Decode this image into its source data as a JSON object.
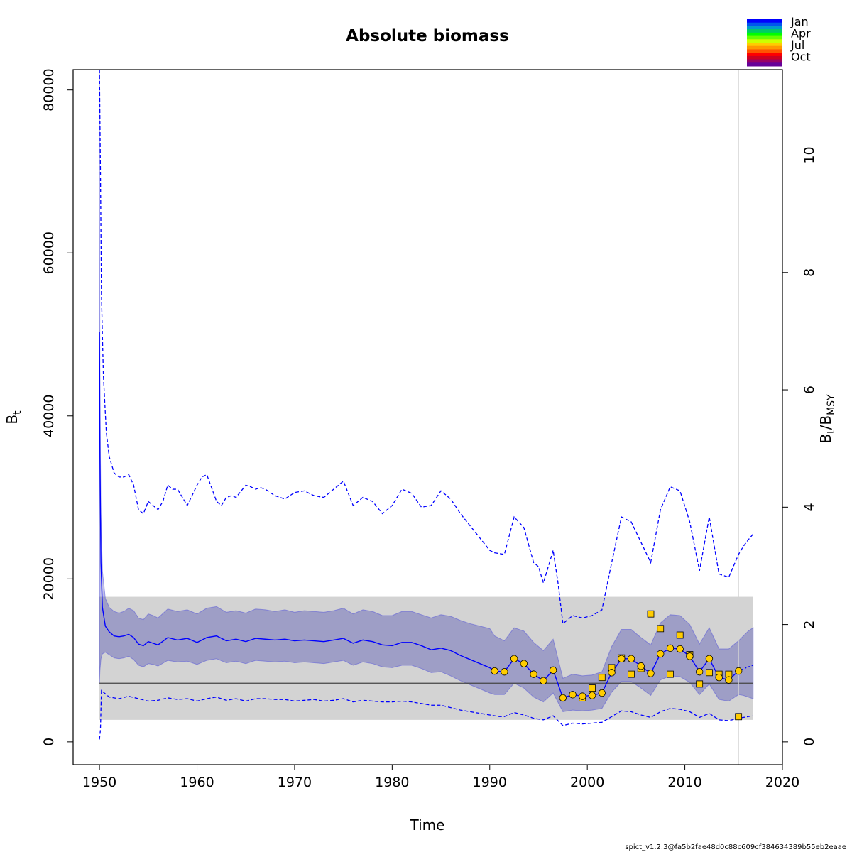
{
  "chart_data": {
    "type": "line",
    "title": "Absolute biomass",
    "xlabel": "Time",
    "ylabel_main": "B",
    "ylabel_sub": "t",
    "y2label": {
      "b": "B",
      "t": "t",
      "slash": "/",
      "b2": "B",
      "msy": "MSY"
    },
    "xlim": [
      1947.3,
      2020
    ],
    "ylim": [
      -2800,
      82500
    ],
    "x_ticks": [
      1950,
      1960,
      1970,
      1980,
      1990,
      2000,
      2010,
      2020
    ],
    "y_ticks": [
      0,
      20000,
      40000,
      60000,
      80000
    ],
    "y2_ticks": [
      0,
      2,
      4,
      6,
      8,
      10
    ],
    "y2_per_unit": 7200,
    "bmsy": 7200,
    "bmsy_ci": [
      2700,
      17800
    ],
    "bmsy_ci_x": [
      1950,
      2017
    ],
    "vline_x": 2015.5,
    "estimate": {
      "x": [
        1950,
        1950.05,
        1950.15,
        1950.3,
        1950.6,
        1951,
        1951.5,
        1952,
        1952.5,
        1953,
        1953.5,
        1954,
        1954.5,
        1955,
        1955.5,
        1956,
        1957,
        1958,
        1959,
        1960,
        1961,
        1962,
        1963,
        1964,
        1965,
        1966,
        1967,
        1968,
        1969,
        1970,
        1971,
        1972,
        1973,
        1974,
        1975,
        1976,
        1977,
        1978,
        1979,
        1980,
        1981,
        1982,
        1983,
        1984,
        1985,
        1986,
        1987,
        1988,
        1989,
        1990,
        1990.5,
        1991.5,
        1992.5,
        1993.5,
        1994.5,
        1995.5,
        1996.5,
        1997.5,
        1998.5,
        1999.5,
        2000.5,
        2001.5,
        2002.5,
        2003.5,
        2004.5,
        2005.5,
        2006.5,
        2007.5,
        2008.5,
        2009.5,
        2010.5,
        2011.5,
        2012.5,
        2013.5,
        2014.5,
        2015.5
      ],
      "y": [
        50300,
        35000,
        22000,
        16500,
        14200,
        13500,
        13000,
        12900,
        13000,
        13200,
        12800,
        12000,
        11800,
        12300,
        12100,
        11900,
        12800,
        12500,
        12700,
        12200,
        12800,
        13000,
        12400,
        12600,
        12300,
        12700,
        12600,
        12500,
        12600,
        12400,
        12500,
        12400,
        12300,
        12500,
        12700,
        12100,
        12500,
        12300,
        11900,
        11800,
        12200,
        12200,
        11800,
        11300,
        11500,
        11200,
        10600,
        10100,
        9600,
        9100,
        8700,
        8600,
        10200,
        9600,
        8300,
        7500,
        8800,
        5400,
        5800,
        5600,
        5700,
        6000,
        8500,
        10200,
        10200,
        9300,
        8400,
        10800,
        11500,
        11400,
        10500,
        8600,
        10200,
        7900,
        7600,
        8700
      ]
    },
    "estimate_forecast": {
      "x": [
        2015.5,
        2016,
        2016.5,
        2017
      ],
      "y": [
        8700,
        8950,
        9200,
        9400
      ]
    },
    "ci_upper": {
      "x": [
        1950,
        1950.05,
        1950.15,
        1950.3,
        1950.6,
        1951,
        1951.5,
        1952,
        1952.5,
        1953,
        1953.5,
        1954,
        1954.5,
        1955,
        1955.5,
        1956,
        1957,
        1958,
        1959,
        1960,
        1961,
        1962,
        1963,
        1964,
        1965,
        1966,
        1967,
        1968,
        1969,
        1970,
        1971,
        1972,
        1973,
        1974,
        1975,
        1976,
        1977,
        1978,
        1979,
        1980,
        1981,
        1982,
        1983,
        1984,
        1985,
        1986,
        1987,
        1988,
        1989,
        1990,
        1990.5,
        1991.5,
        1992.5,
        1993.5,
        1994.5,
        1995.5,
        1996.5,
        1997.5,
        1998.5,
        1999.5,
        2000.5,
        2001.5,
        2002.5,
        2003.5,
        2004.5,
        2005.5,
        2006.5,
        2007.5,
        2008.5,
        2009.5,
        2010.5,
        2011.5,
        2012.5,
        2013.5,
        2014.5,
        2015.5,
        2016,
        2016.5,
        2017
      ],
      "y": [
        82500,
        42000,
        28000,
        21000,
        17600,
        16500,
        16000,
        15800,
        16000,
        16400,
        16100,
        15200,
        15000,
        15700,
        15500,
        15200,
        16300,
        16000,
        16200,
        15700,
        16400,
        16600,
        15900,
        16100,
        15800,
        16300,
        16200,
        16000,
        16200,
        15900,
        16100,
        16000,
        15900,
        16100,
        16400,
        15700,
        16200,
        16000,
        15500,
        15500,
        16000,
        16000,
        15600,
        15200,
        15600,
        15400,
        14900,
        14500,
        14200,
        13900,
        13000,
        12400,
        14000,
        13600,
        12200,
        11200,
        12600,
        7800,
        8300,
        8100,
        8200,
        8600,
        11700,
        13800,
        13800,
        12800,
        11900,
        14600,
        15600,
        15500,
        14400,
        12000,
        14000,
        11400,
        11400,
        12400,
        13000,
        13600,
        14000
      ]
    },
    "ci_lower": {
      "x": [
        1950,
        1950.05,
        1950.15,
        1950.3,
        1950.6,
        1951,
        1951.5,
        1952,
        1952.5,
        1953,
        1953.5,
        1954,
        1954.5,
        1955,
        1955.5,
        1956,
        1957,
        1958,
        1959,
        1960,
        1961,
        1962,
        1963,
        1964,
        1965,
        1966,
        1967,
        1968,
        1969,
        1970,
        1971,
        1972,
        1973,
        1974,
        1975,
        1976,
        1977,
        1978,
        1979,
        1980,
        1981,
        1982,
        1983,
        1984,
        1985,
        1986,
        1987,
        1988,
        1989,
        1990,
        1990.5,
        1991.5,
        1992.5,
        1993.5,
        1994.5,
        1995.5,
        1996.5,
        1997.5,
        1998.5,
        1999.5,
        2000.5,
        2001.5,
        2002.5,
        2003.5,
        2004.5,
        2005.5,
        2006.5,
        2007.5,
        2008.5,
        2009.5,
        2010.5,
        2011.5,
        2012.5,
        2013.5,
        2014.5,
        2015.5,
        2016,
        2016.5,
        2017
      ],
      "y": [
        7200,
        8800,
        10200,
        10800,
        11000,
        10700,
        10300,
        10200,
        10300,
        10500,
        10100,
        9400,
        9200,
        9600,
        9500,
        9300,
        10000,
        9800,
        9900,
        9500,
        10000,
        10200,
        9700,
        9900,
        9600,
        10000,
        9900,
        9800,
        9900,
        9700,
        9800,
        9700,
        9600,
        9800,
        10000,
        9400,
        9800,
        9600,
        9200,
        9100,
        9400,
        9400,
        9000,
        8500,
        8600,
        8100,
        7500,
        7000,
        6500,
        6000,
        5800,
        5800,
        7200,
        6600,
        5500,
        4900,
        6000,
        3700,
        3900,
        3800,
        3900,
        4100,
        6100,
        7400,
        7400,
        6600,
        5700,
        7600,
        8100,
        8000,
        7300,
        5800,
        7100,
        5200,
        5000,
        5800,
        5700,
        5500,
        5300
      ]
    },
    "dashed_upper": {
      "x": [
        1950,
        1950.1,
        1950.2,
        1950.4,
        1950.7,
        1951,
        1951.5,
        1952,
        1952.5,
        1953,
        1953.5,
        1954,
        1954.5,
        1955,
        1955.5,
        1956,
        1956.5,
        1957,
        1957.5,
        1958,
        1959,
        1960,
        1960.5,
        1961,
        1962,
        1962.5,
        1963,
        1963.5,
        1964,
        1965,
        1965.5,
        1966,
        1966.5,
        1967,
        1968,
        1969,
        1970,
        1971,
        1972,
        1973,
        1974,
        1975,
        1976,
        1977,
        1978,
        1979,
        1980,
        1981,
        1982,
        1983,
        1984,
        1985,
        1986,
        1987,
        1988,
        1989,
        1990,
        1990.5,
        1991.5,
        1992.5,
        1993.5,
        1994.5,
        1995,
        1995.5,
        1996,
        1996.5,
        1997,
        1997.5,
        1998.5,
        1999.5,
        2000.5,
        2001.5,
        2002.5,
        2003.5,
        2004.5,
        2005.5,
        2006.5,
        2007.5,
        2008.5,
        2009.5,
        2010.5,
        2011.5,
        2012.5,
        2013.5,
        2014.5,
        2015.5,
        2016,
        2016.5,
        2017
      ],
      "y": [
        82500,
        70000,
        55000,
        45000,
        38000,
        35000,
        33000,
        32500,
        32500,
        32800,
        31500,
        28500,
        28000,
        29500,
        29000,
        28500,
        29500,
        31500,
        31000,
        31000,
        29000,
        31500,
        32500,
        32800,
        29500,
        29000,
        30000,
        30200,
        30000,
        31500,
        31300,
        31000,
        31200,
        31000,
        30200,
        29800,
        30600,
        30800,
        30200,
        30000,
        31000,
        32000,
        29000,
        30000,
        29500,
        28000,
        29000,
        31000,
        30500,
        28800,
        29000,
        30800,
        29800,
        28000,
        26500,
        25000,
        23500,
        23200,
        23000,
        27600,
        26300,
        22000,
        21500,
        19500,
        21500,
        23500,
        19500,
        14500,
        15500,
        15200,
        15500,
        16200,
        22000,
        27600,
        27000,
        24500,
        22000,
        28500,
        31300,
        30800,
        27000,
        21000,
        27600,
        20600,
        20200,
        23000,
        24000,
        24800,
        25500
      ]
    },
    "dashed_lower": {
      "x": [
        1950,
        1950.1,
        1950.2,
        1950.4,
        1950.7,
        1951,
        1952,
        1953,
        1954,
        1955,
        1956,
        1957,
        1958,
        1959,
        1960,
        1961,
        1962,
        1963,
        1964,
        1965,
        1966,
        1967,
        1968,
        1969,
        1970,
        1971,
        1972,
        1973,
        1974,
        1975,
        1976,
        1977,
        1978,
        1979,
        1980,
        1981,
        1982,
        1983,
        1984,
        1985,
        1986,
        1987,
        1988,
        1989,
        1990,
        1991,
        1991.5,
        1992.5,
        1993.5,
        1994.5,
        1995.5,
        1996.5,
        1997.5,
        1998.5,
        1999.5,
        2000.5,
        2001.5,
        2002.5,
        2003.5,
        2004.5,
        2005.5,
        2006.5,
        2007.5,
        2008.5,
        2009.5,
        2010.5,
        2011.5,
        2012.5,
        2013.5,
        2014.5,
        2015.5,
        2016,
        2016.5,
        2017
      ],
      "y": [
        300,
        1500,
        6300,
        6100,
        5800,
        5500,
        5300,
        5600,
        5300,
        5000,
        5100,
        5400,
        5200,
        5300,
        5000,
        5300,
        5500,
        5100,
        5300,
        5000,
        5300,
        5300,
        5200,
        5200,
        5000,
        5100,
        5200,
        5000,
        5100,
        5300,
        4900,
        5100,
        5000,
        4900,
        4900,
        5000,
        4900,
        4700,
        4500,
        4500,
        4200,
        3900,
        3700,
        3500,
        3300,
        3100,
        3100,
        3600,
        3300,
        2900,
        2700,
        3200,
        2000,
        2300,
        2200,
        2300,
        2400,
        3100,
        3800,
        3700,
        3300,
        3000,
        3700,
        4100,
        4000,
        3700,
        3000,
        3500,
        2700,
        2600,
        2900,
        3000,
        3100,
        3200
      ]
    },
    "circles": {
      "x": [
        1990.5,
        1991.5,
        1992.5,
        1993.5,
        1994.5,
        1995.5,
        1996.5,
        1997.5,
        1998.5,
        1999.5,
        2000.5,
        2001.5,
        2002.5,
        2003.5,
        2004.5,
        2005.5,
        2006.5,
        2007.5,
        2008.5,
        2009.5,
        2010.5,
        2011.5,
        2012.5,
        2013.5,
        2014.5,
        2015.5
      ],
      "y": [
        8700,
        8600,
        10200,
        9600,
        8300,
        7500,
        8800,
        5400,
        5800,
        5600,
        5700,
        6000,
        8500,
        10200,
        10200,
        9300,
        8400,
        10800,
        11500,
        11400,
        10500,
        8600,
        10200,
        7900,
        7600,
        8700
      ]
    },
    "squares": {
      "x": [
        1999.5,
        2000.5,
        2001.5,
        2002.5,
        2003.5,
        2004.5,
        2005.5,
        2006.5,
        2007.5,
        2008.5,
        2009.5,
        2010.5,
        2011.5,
        2012.5,
        2013.5,
        2014.5,
        2015.5
      ],
      "y": [
        5400,
        6600,
        7900,
        9100,
        10300,
        8300,
        9000,
        15700,
        13900,
        8300,
        13100,
        10700,
        7100,
        8500,
        8300,
        8300,
        3100
      ]
    },
    "legend": {
      "placement": "top-right",
      "labels": [
        "Jan",
        "Apr",
        "Jul",
        "Oct"
      ],
      "colors": [
        "#0000ff",
        "#0055ee",
        "#0099cc",
        "#00cc66",
        "#00ff00",
        "#66ff00",
        "#ccff00",
        "#ffcc00",
        "#ff9900",
        "#ff5500",
        "#ff0000",
        "#cc0022",
        "#990066",
        "#660099"
      ]
    },
    "colors": {
      "estimate": "#0000ff",
      "ci_band": "rgba(0,0,160,0.25)",
      "bmsy_band": "#d3d3d3",
      "bmsy_line": "#444444",
      "marker_fill": "#ffcc00",
      "vline": "#d3d3d3"
    }
  },
  "footer": "spict_v1.2.3@fa5b2fae48d0c88c609cf384634389b55eb2eaae"
}
